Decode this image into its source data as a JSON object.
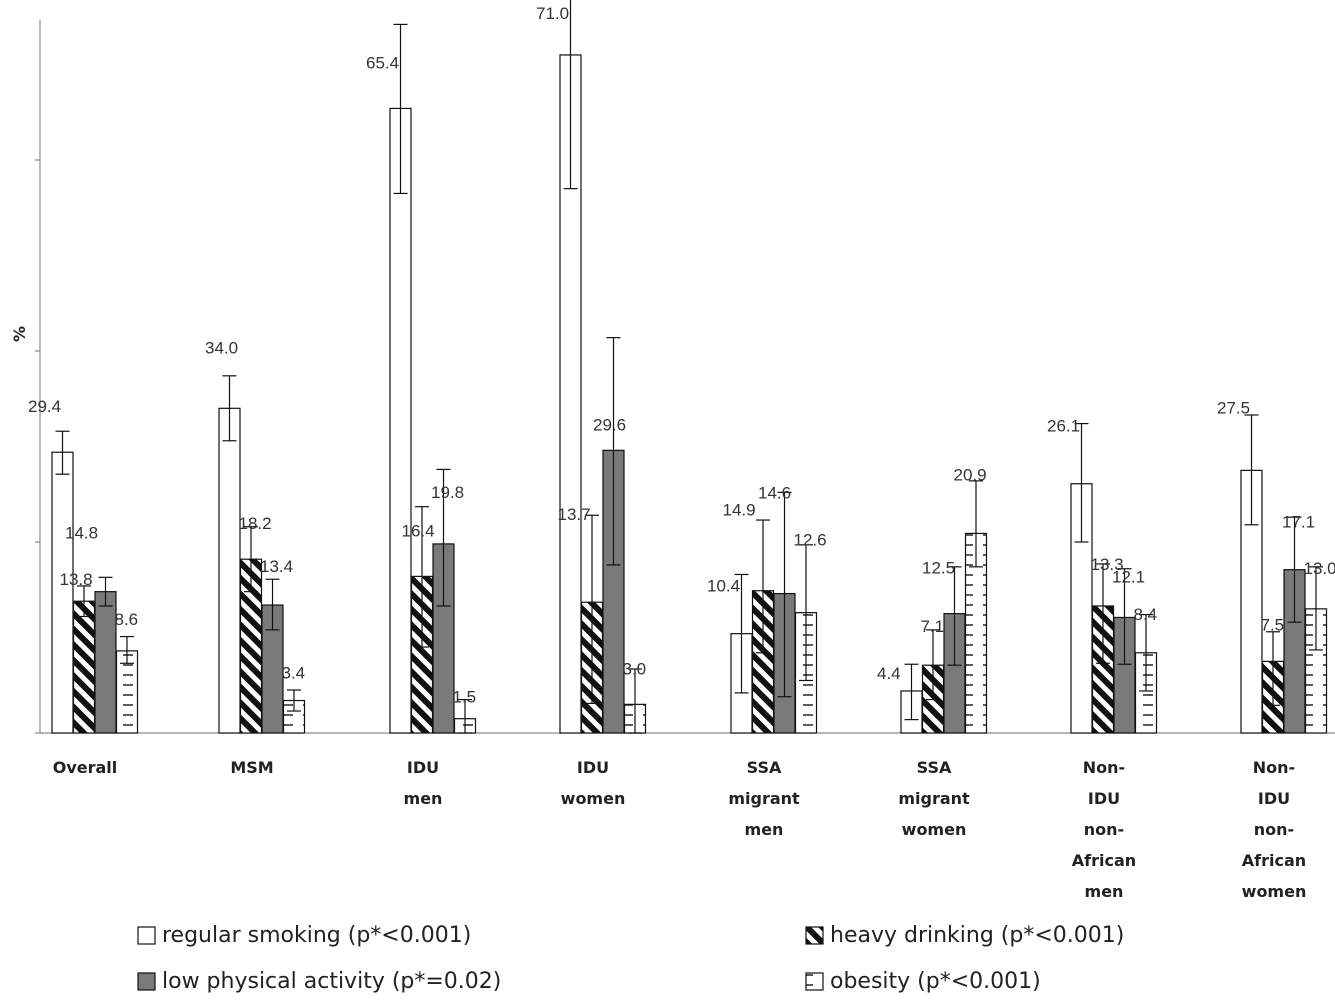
{
  "chart_data": {
    "type": "bar",
    "ylabel": "%",
    "ylim": [
      0,
      75
    ],
    "y_ticks": [
      0,
      20,
      40,
      60
    ],
    "categories": [
      [
        "Overall"
      ],
      [
        "MSM"
      ],
      [
        "IDU",
        "men"
      ],
      [
        "IDU",
        "women"
      ],
      [
        "SSA",
        "migrant",
        "men"
      ],
      [
        "SSA",
        "migrant",
        "women"
      ],
      [
        "Non-",
        "IDU",
        "non-",
        "African",
        "men"
      ],
      [
        "Non-",
        "IDU",
        "non-",
        "African",
        "women"
      ]
    ],
    "series": [
      {
        "name": "regular smoking (p*<0.001)",
        "pattern": "white",
        "values": [
          29.4,
          34.0,
          65.4,
          71.0,
          10.4,
          4.4,
          26.1,
          27.5
        ],
        "ci": [
          [
            27.1,
            31.6
          ],
          [
            30.6,
            37.4
          ],
          [
            56.5,
            74.2
          ],
          [
            57.0,
            82.0
          ],
          [
            4.2,
            16.6
          ],
          [
            1.4,
            7.2
          ],
          [
            20.0,
            32.4
          ],
          [
            21.8,
            33.3
          ]
        ],
        "labels": [
          "29.4",
          "34.0",
          "65.4",
          "71.0",
          "10.4",
          "4.4",
          "26.1",
          "27.5"
        ]
      },
      {
        "name": "heavy drinking (p*<0.001)",
        "pattern": "diag",
        "values": [
          13.8,
          18.2,
          16.4,
          13.7,
          14.9,
          7.1,
          13.3,
          7.5
        ],
        "ci": [
          [
            12.2,
            15.4
          ],
          [
            14.8,
            21.6
          ],
          [
            9.0,
            23.7
          ],
          [
            3.1,
            22.8
          ],
          [
            8.4,
            22.3
          ],
          [
            3.5,
            10.8
          ],
          [
            7.3,
            17.7
          ],
          [
            2.9,
            10.6
          ]
        ],
        "labels": [
          "13.8",
          "18.2",
          "16.4",
          "13.7",
          "14.9",
          "7.1",
          "13.3",
          "7.5"
        ]
      },
      {
        "name": "low physical activity (p*=0.02)",
        "pattern": "gray",
        "values": [
          14.8,
          13.4,
          19.8,
          29.6,
          14.6,
          12.5,
          12.1,
          17.1
        ],
        "ci": [
          [
            13.3,
            16.3
          ],
          [
            10.8,
            16.1
          ],
          [
            13.3,
            27.6
          ],
          [
            17.6,
            41.4
          ],
          [
            3.8,
            25.2
          ],
          [
            7.1,
            17.4
          ],
          [
            7.2,
            17.2
          ],
          [
            11.6,
            22.6
          ]
        ],
        "labels": [
          "14.8",
          "13.4",
          "19.8",
          "29.6",
          "14.6",
          "12.5",
          "12.1",
          "17.1"
        ]
      },
      {
        "name": "obesity (p*<0.001)",
        "pattern": "dash",
        "values": [
          8.6,
          3.4,
          1.5,
          3.0,
          12.6,
          20.9,
          8.4,
          13.0
        ],
        "ci": [
          [
            7.3,
            10.1
          ],
          [
            2.3,
            4.5
          ],
          [
            0.0,
            3.5
          ],
          [
            0.0,
            6.7
          ],
          [
            5.5,
            19.7
          ],
          [
            17.4,
            26.4
          ],
          [
            4.4,
            12.4
          ],
          [
            8.7,
            17.4
          ]
        ],
        "labels": [
          "8.6",
          "3.4",
          "1.5",
          "3.0",
          "12.6",
          "20.9",
          "8.4",
          "13.0"
        ]
      }
    ],
    "legend": {
      "placement": "bottom",
      "order": [
        0,
        1,
        2,
        3
      ]
    },
    "grid": false
  }
}
